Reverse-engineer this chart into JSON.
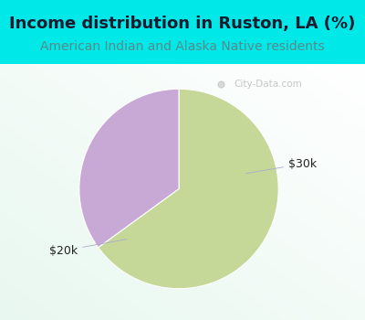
{
  "title": "Income distribution in Ruston, LA (%)",
  "subtitle": "American Indian and Alaska Native residents",
  "title_color": "#1a1a2e",
  "subtitle_color": "#5a8a8a",
  "title_fontsize": 13,
  "subtitle_fontsize": 10,
  "background_color": "#00e8e8",
  "slices": [
    {
      "label": "$20k",
      "value": 65,
      "color": "#c5d898"
    },
    {
      "label": "$30k",
      "value": 35,
      "color": "#c8a8d5"
    }
  ],
  "label_color": "#222222",
  "label_fontsize": 9,
  "watermark": "City-Data.com",
  "startangle": 90
}
